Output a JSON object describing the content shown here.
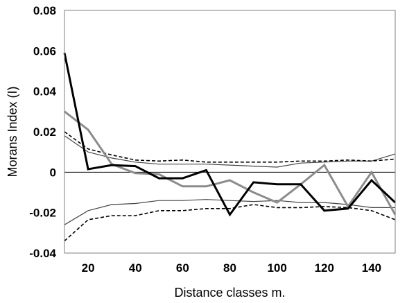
{
  "chart_data": {
    "type": "line",
    "title": "",
    "xlabel": "Distance classes m.",
    "ylabel": "Morans Index (I)",
    "xlim": [
      10,
      150
    ],
    "ylim": [
      -0.04,
      0.08
    ],
    "x": [
      10,
      20,
      30,
      40,
      50,
      60,
      70,
      80,
      90,
      100,
      110,
      120,
      130,
      140,
      150
    ],
    "xticks": [
      20,
      40,
      60,
      80,
      100,
      120,
      140
    ],
    "xtick_labels": [
      "20",
      "40",
      "60",
      "80",
      "100",
      "120",
      "140"
    ],
    "yticks": [
      -0.04,
      -0.02,
      0,
      0.02,
      0.04,
      0.06,
      0.08
    ],
    "ytick_labels": [
      "-0.04",
      "-0.02",
      "0",
      "0.02",
      "0.04",
      "0.06",
      "0.08"
    ],
    "zero_line": true,
    "grid": false,
    "legend": "none",
    "series": [
      {
        "values": [
          0.059,
          0.0015,
          0.0035,
          0.003,
          -0.003,
          -0.003,
          0.001,
          -0.021,
          -0.005,
          -0.006,
          -0.006,
          -0.019,
          -0.018,
          -0.004,
          -0.015
        ],
        "color": "#000000",
        "style": "solid-thick"
      },
      {
        "values": [
          0.03,
          0.021,
          0.004,
          -0.0005,
          -0.001,
          -0.007,
          -0.007,
          -0.004,
          -0.01,
          -0.015,
          -0.006,
          0.0035,
          -0.017,
          0.0,
          -0.021
        ],
        "color": "#8c8c8c",
        "style": "solid-thick"
      },
      {
        "values": [
          0.018,
          0.01,
          0.007,
          0.005,
          0.004,
          0.004,
          0.004,
          0.0035,
          0.003,
          0.0025,
          0.0045,
          0.005,
          0.0055,
          0.0055,
          0.009
        ],
        "color": "#444444",
        "style": "solid-thin"
      },
      {
        "values": [
          0.02,
          0.0115,
          0.0085,
          0.006,
          0.0055,
          0.006,
          0.005,
          0.005,
          0.005,
          0.005,
          0.0055,
          0.0055,
          0.006,
          0.0055,
          0.0065
        ],
        "color": "#000000",
        "style": "dashed"
      },
      {
        "values": [
          -0.026,
          -0.019,
          -0.016,
          -0.0155,
          -0.014,
          -0.014,
          -0.0135,
          -0.014,
          -0.0145,
          -0.014,
          -0.015,
          -0.015,
          -0.016,
          -0.0175,
          -0.0175
        ],
        "color": "#444444",
        "style": "solid-thin"
      },
      {
        "values": [
          -0.034,
          -0.0235,
          -0.0215,
          -0.0215,
          -0.019,
          -0.019,
          -0.018,
          -0.018,
          -0.016,
          -0.0175,
          -0.0175,
          -0.017,
          -0.0175,
          -0.019,
          -0.0235
        ],
        "color": "#000000",
        "style": "dashed"
      }
    ]
  }
}
